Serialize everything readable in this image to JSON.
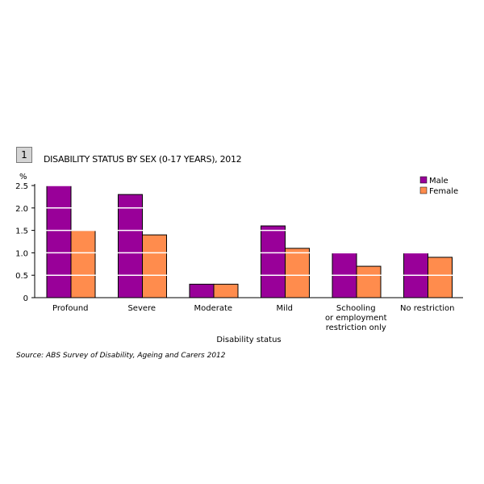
{
  "header": {
    "badge": "1",
    "title": "DISABILITY STATUS BY SEX (0-17 YEARS), 2012"
  },
  "footer": {
    "source": "Source: ABS Survey of Disability, Ageing and Carers 2012"
  },
  "chart_data": {
    "type": "bar",
    "title": "DISABILITY STATUS BY SEX (0-17 YEARS), 2012",
    "xlabel": "Disability status",
    "ylabel": "%",
    "ylim": [
      0,
      2.5
    ],
    "yticks": [
      "0",
      "0.5",
      "1.0",
      "1.5",
      "2.0",
      "2.5"
    ],
    "grid": true,
    "legend_position": "top-right",
    "categories": [
      [
        "Profound"
      ],
      [
        "Severe"
      ],
      [
        "Moderate"
      ],
      [
        "Mild"
      ],
      [
        "Schooling",
        "or employment",
        "restriction only"
      ],
      [
        "No restriction"
      ]
    ],
    "series": [
      {
        "name": "Male",
        "color": "#990099",
        "values": [
          2.5,
          2.3,
          0.3,
          1.6,
          1.0,
          1.0
        ]
      },
      {
        "name": "Female",
        "color": "#ff8c4d",
        "values": [
          1.5,
          1.4,
          0.3,
          1.1,
          0.7,
          0.9
        ]
      }
    ]
  }
}
